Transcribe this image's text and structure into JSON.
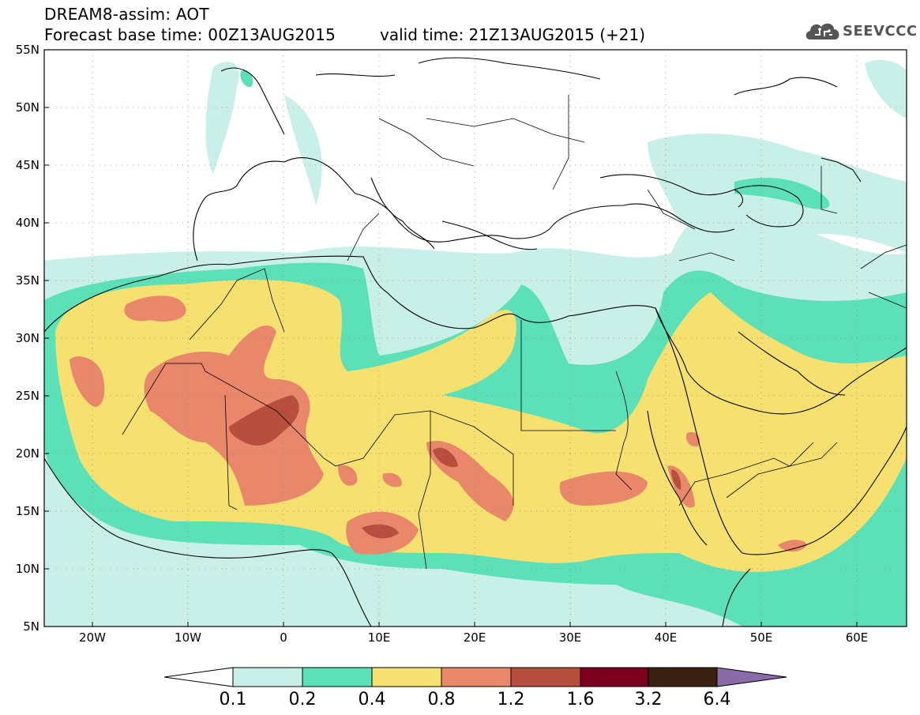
{
  "header": {
    "title_line1": "DREAM8-assim: AOT",
    "title_line2": "Forecast base time: 00Z13AUG2015",
    "valid_time": "valid time: 21Z13AUG2015 (+21)",
    "logo_text": "SEEVCCC",
    "logo_icon": "cloud-icon"
  },
  "map": {
    "lat_labels": [
      "55N",
      "50N",
      "45N",
      "40N",
      "35N",
      "30N",
      "25N",
      "20N",
      "15N",
      "10N",
      "5N"
    ],
    "lon_labels": [
      "20W",
      "10W",
      "0",
      "10E",
      "20E",
      "30E",
      "40E",
      "50E",
      "60E"
    ],
    "lat_range": [
      5,
      55
    ],
    "lon_range": [
      -25,
      65
    ],
    "grid": "dotted"
  },
  "colorbar": {
    "labels": [
      "0.1",
      "0.2",
      "0.4",
      "0.8",
      "1.2",
      "1.6",
      "3.2",
      "6.4"
    ],
    "colors": [
      "#ffffff",
      "#c8f0e8",
      "#5be0b8",
      "#f6e170",
      "#e8876a",
      "#b84f3e",
      "#7b0020",
      "#3a2010",
      "#8a6aa8"
    ]
  }
}
